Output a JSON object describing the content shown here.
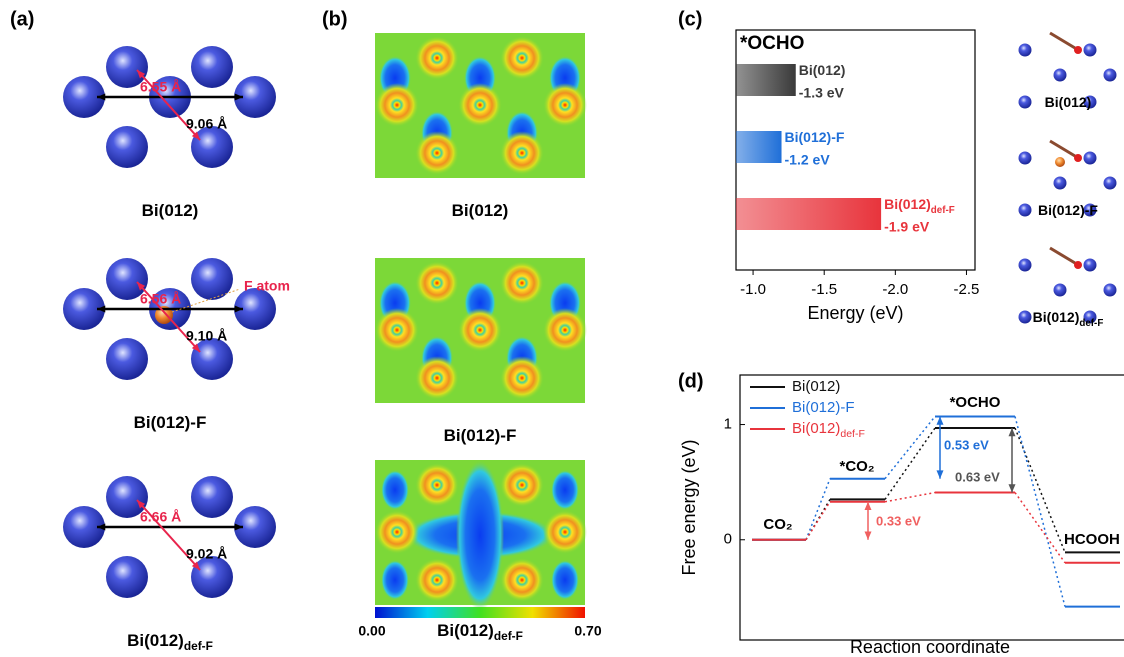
{
  "panel_a": {
    "label": "(a)",
    "structures": [
      {
        "short": "6.55 Å",
        "long": "9.06 Å",
        "name": "Bi(012)"
      },
      {
        "short": "6.56 Å",
        "long": "9.10 Å",
        "name": "Bi(012)-F",
        "marker": "F atom"
      },
      {
        "short": "6.66 Å",
        "long": "9.02 Å",
        "name": "Bi(012)",
        "name_sub": "def-F"
      }
    ]
  },
  "panel_b": {
    "label": "(b)",
    "maps": [
      {
        "name": "Bi(012)"
      },
      {
        "name": "Bi(012)-F"
      },
      {
        "name": "Bi(012)",
        "name_sub": "def-F"
      }
    ],
    "colorbar": {
      "min": {
        "value": 0,
        "label": "0.00"
      },
      "max": {
        "value": 0.7,
        "label": "0.70"
      }
    }
  },
  "panel_c_models": [
    {
      "name": "Bi(012)"
    },
    {
      "name": "Bi(012)-F"
    },
    {
      "name": "Bi(012)",
      "name_sub": "def-F"
    }
  ],
  "chart_data": [
    {
      "type": "bar",
      "panel_label": "(c)",
      "orientation": "horizontal",
      "title": "*OCHO",
      "categories": [
        "Bi(012)",
        "Bi(012)-F",
        "Bi(012)"
      ],
      "category_subs": [
        null,
        null,
        "def-F"
      ],
      "values": [
        -1.3,
        -1.2,
        -1.9
      ],
      "value_labels": [
        "-1.3 eV",
        "-1.2 eV",
        "-1.9 eV"
      ],
      "colors": [
        "#3a3a3a",
        "#1f6fd8",
        "#e8343c"
      ],
      "xlabel": "Energy (eV)",
      "xlim": [
        -0.88,
        -2.56
      ],
      "xticks": [
        {
          "value": -1,
          "label": "-1.0"
        },
        -1.5,
        {
          "value": -2,
          "label": "-2.0"
        },
        -2.5
      ]
    },
    {
      "type": "energy_levels",
      "panel_label": "(d)",
      "categories": [
        "CO₂",
        "*CO₂",
        "*OCHO",
        "HCOOH"
      ],
      "series": [
        {
          "name": "Bi(012)",
          "color": "#111111",
          "values": [
            0,
            0.35,
            0.97,
            -0.11
          ]
        },
        {
          "name": "Bi(012)-F",
          "color": "#1f6fd8",
          "values": [
            0,
            0.53,
            1.07,
            -0.58
          ]
        },
        {
          "name": "Bi(012)",
          "name_sub": "def-F",
          "color": "#e8343c",
          "values": [
            0,
            0.33,
            0.41,
            -0.2
          ]
        }
      ],
      "annotations": [
        {
          "text": "0.33 eV",
          "color": "#f06060"
        },
        {
          "text": "0.53 eV",
          "color": "#1f6fd8"
        },
        {
          "text": "0.63 eV",
          "color": "#555555"
        }
      ],
      "xlabel": "Reaction coordinate",
      "ylabel": "Free energy (eV)",
      "ylim": [
        -0.87,
        1.43
      ],
      "yticks": [
        0,
        1
      ]
    }
  ]
}
